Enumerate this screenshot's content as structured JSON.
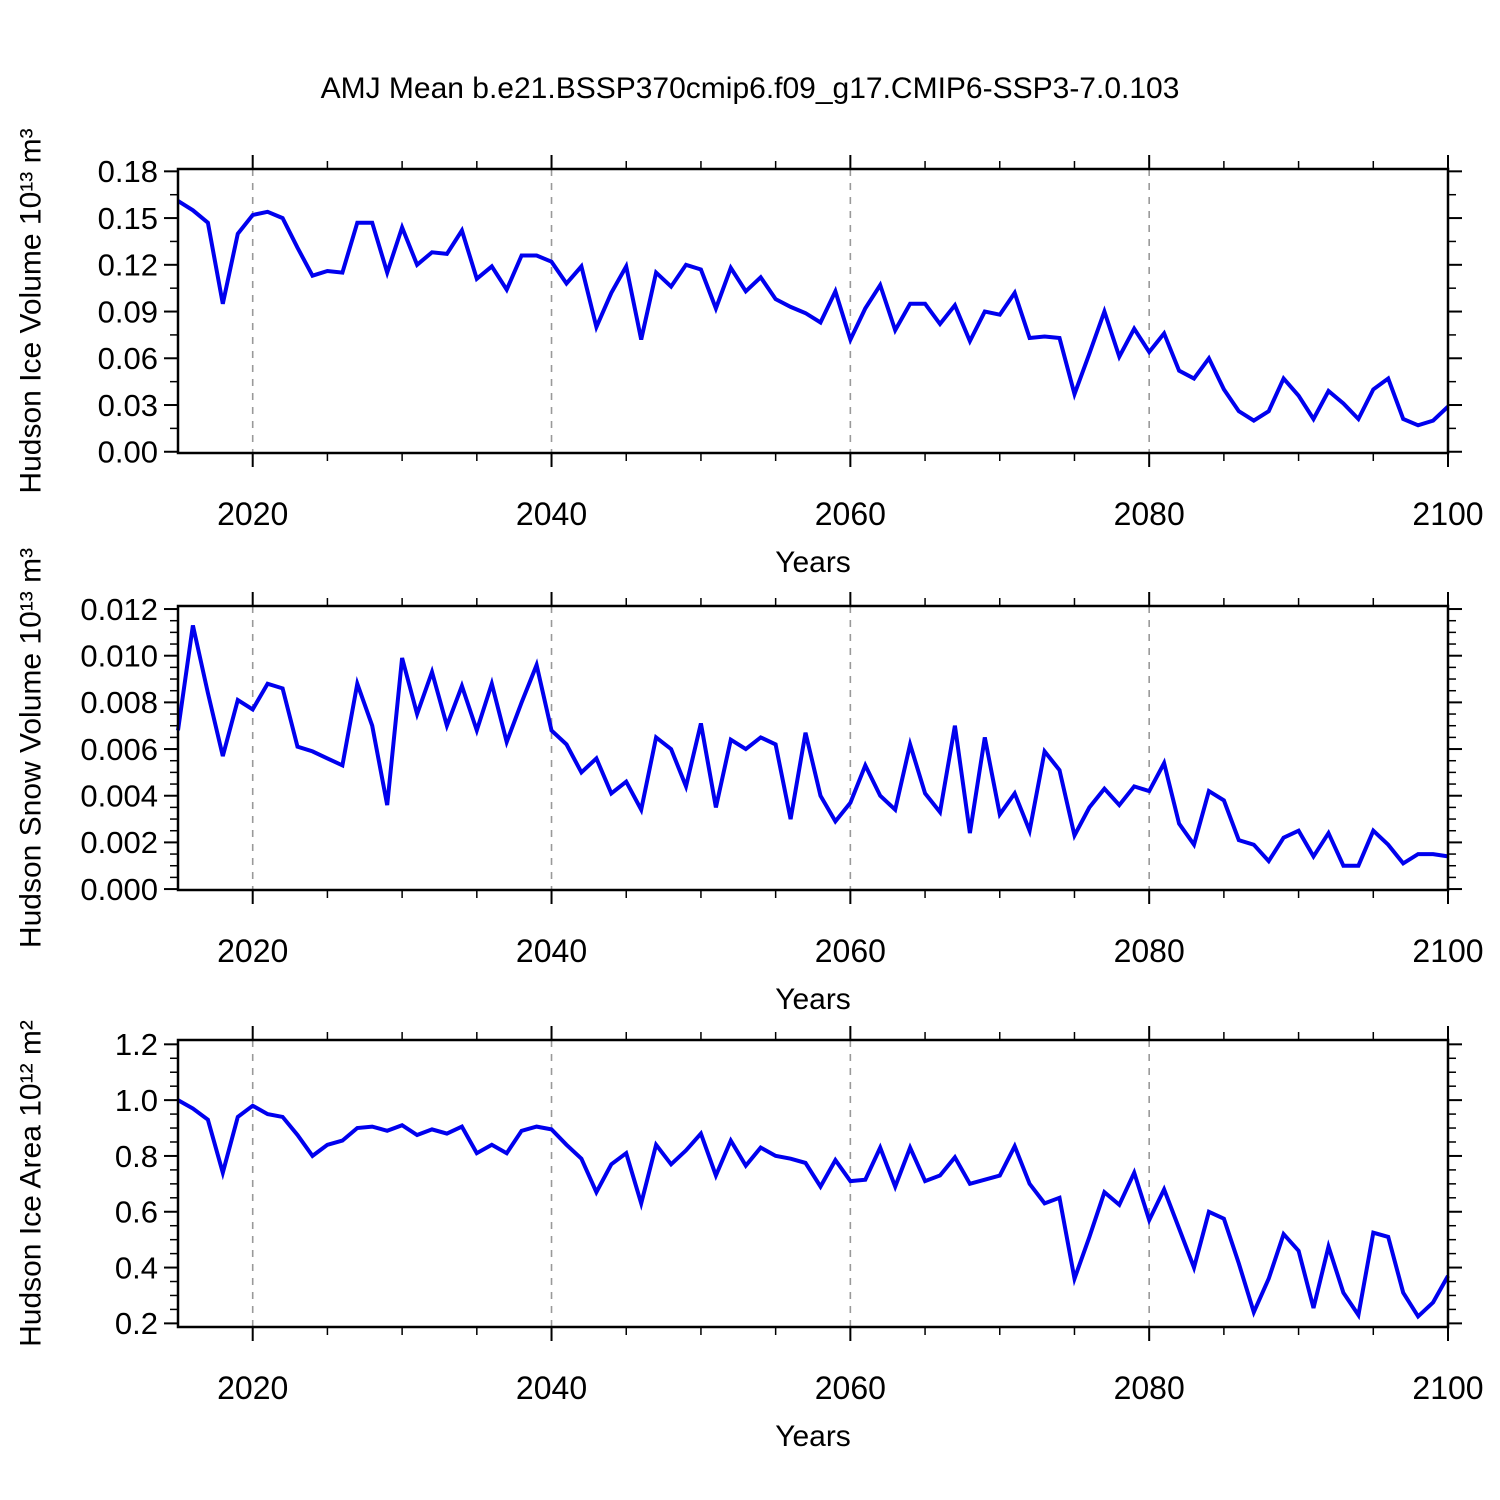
{
  "title": "AMJ Mean b.e21.BSSP370cmip6.f09_g17.CMIP6-SSP3-7.0.103",
  "figure": {
    "background": "#ffffff",
    "series_color": "#0000ee",
    "grid_color": "#999999",
    "frame_color": "#000000"
  },
  "chart_data": [
    {
      "type": "line",
      "name": "hudson-ice-volume",
      "ylabel": "Hudson Ice Volume 10¹³ m³",
      "xlabel": "Years",
      "x_range": {
        "start": 2015,
        "end": 2100,
        "step": 1
      },
      "xlim": [
        2015,
        2100
      ],
      "ylim": [
        -0.0008,
        0.1815
      ],
      "xticks": [
        2020,
        2040,
        2060,
        2080,
        2100
      ],
      "xtick_labels": [
        "2020",
        "2040",
        "2060",
        "2080",
        "2100"
      ],
      "x_minor_step": 5,
      "yticks": [
        0.0,
        0.03,
        0.06,
        0.09,
        0.12,
        0.15,
        0.18
      ],
      "ytick_labels": [
        "0.00",
        "0.03",
        "0.06",
        "0.09",
        "0.12",
        "0.15",
        "0.18"
      ],
      "y_minor_step": 0.015,
      "grid_x": [
        2020,
        2040,
        2060,
        2080
      ],
      "grid_on": true,
      "legend": "none",
      "values": [
        0.161,
        0.155,
        0.147,
        0.095,
        0.14,
        0.152,
        0.154,
        0.15,
        0.131,
        0.113,
        0.116,
        0.115,
        0.147,
        0.147,
        0.115,
        0.144,
        0.12,
        0.128,
        0.127,
        0.142,
        0.111,
        0.119,
        0.104,
        0.126,
        0.126,
        0.122,
        0.108,
        0.119,
        0.08,
        0.102,
        0.119,
        0.072,
        0.115,
        0.106,
        0.12,
        0.117,
        0.092,
        0.118,
        0.103,
        0.112,
        0.098,
        0.093,
        0.089,
        0.083,
        0.103,
        0.072,
        0.092,
        0.107,
        0.078,
        0.095,
        0.095,
        0.082,
        0.094,
        0.071,
        0.09,
        0.088,
        0.102,
        0.073,
        0.074,
        0.073,
        0.037,
        0.063,
        0.09,
        0.061,
        0.079,
        0.064,
        0.076,
        0.052,
        0.047,
        0.06,
        0.04,
        0.026,
        0.02,
        0.026,
        0.047,
        0.036,
        0.021,
        0.039,
        0.031,
        0.021,
        0.04,
        0.047,
        0.021,
        0.017,
        0.02,
        0.029
      ]
    },
    {
      "type": "line",
      "name": "hudson-snow-volume",
      "ylabel": "Hudson Snow Volume 10¹³ m³",
      "xlabel": "Years",
      "x_range": {
        "start": 2015,
        "end": 2100,
        "step": 1
      },
      "xlim": [
        2015,
        2100
      ],
      "ylim": [
        -4e-05,
        0.01213
      ],
      "xticks": [
        2020,
        2040,
        2060,
        2080,
        2100
      ],
      "xtick_labels": [
        "2020",
        "2040",
        "2060",
        "2080",
        "2100"
      ],
      "x_minor_step": 5,
      "yticks": [
        0.0,
        0.002,
        0.004,
        0.006,
        0.008,
        0.01,
        0.012
      ],
      "ytick_labels": [
        "0.000",
        "0.002",
        "0.004",
        "0.006",
        "0.008",
        "0.010",
        "0.012"
      ],
      "y_minor_step": 0.0005,
      "grid_x": [
        2020,
        2040,
        2060,
        2080
      ],
      "grid_on": true,
      "legend": "none",
      "values": [
        0.0068,
        0.0113,
        0.0084,
        0.0057,
        0.0081,
        0.0077,
        0.0088,
        0.0086,
        0.0061,
        0.0059,
        0.0056,
        0.0053,
        0.0088,
        0.007,
        0.0036,
        0.0099,
        0.0075,
        0.0093,
        0.007,
        0.0087,
        0.0068,
        0.0088,
        0.0063,
        0.008,
        0.0096,
        0.0068,
        0.0062,
        0.005,
        0.0056,
        0.0041,
        0.0046,
        0.0034,
        0.0065,
        0.006,
        0.0044,
        0.0071,
        0.0035,
        0.0064,
        0.006,
        0.0065,
        0.0062,
        0.003,
        0.0067,
        0.004,
        0.0029,
        0.0037,
        0.0053,
        0.004,
        0.0034,
        0.0062,
        0.0041,
        0.0033,
        0.007,
        0.0024,
        0.0065,
        0.0032,
        0.0041,
        0.0025,
        0.0059,
        0.0051,
        0.0023,
        0.0035,
        0.0043,
        0.0036,
        0.0044,
        0.0042,
        0.0054,
        0.0028,
        0.0019,
        0.0042,
        0.0038,
        0.0021,
        0.0019,
        0.0012,
        0.0022,
        0.0025,
        0.0014,
        0.0024,
        0.001,
        0.001,
        0.0025,
        0.0019,
        0.0011,
        0.0015,
        0.0015,
        0.0014
      ]
    },
    {
      "type": "line",
      "name": "hudson-ice-area",
      "ylabel": "Hudson Ice Area 10¹² m²",
      "xlabel": "Years",
      "x_range": {
        "start": 2015,
        "end": 2100,
        "step": 1
      },
      "xlim": [
        2015,
        2100
      ],
      "ylim": [
        0.187,
        1.2155
      ],
      "xticks": [
        2020,
        2040,
        2060,
        2080,
        2100
      ],
      "xtick_labels": [
        "2020",
        "2040",
        "2060",
        "2080",
        "2100"
      ],
      "x_minor_step": 5,
      "yticks": [
        0.2,
        0.4,
        0.6,
        0.8,
        1.0,
        1.2
      ],
      "ytick_labels": [
        "0.2",
        "0.4",
        "0.6",
        "0.8",
        "1.0",
        "1.2"
      ],
      "y_minor_step": 0.05,
      "grid_x": [
        2020,
        2040,
        2060,
        2080
      ],
      "grid_on": true,
      "legend": "none",
      "values": [
        1.0,
        0.97,
        0.93,
        0.74,
        0.94,
        0.98,
        0.95,
        0.94,
        0.875,
        0.8,
        0.84,
        0.855,
        0.9,
        0.905,
        0.89,
        0.91,
        0.875,
        0.895,
        0.88,
        0.905,
        0.81,
        0.84,
        0.81,
        0.89,
        0.905,
        0.895,
        0.84,
        0.79,
        0.67,
        0.77,
        0.81,
        0.63,
        0.84,
        0.77,
        0.82,
        0.88,
        0.73,
        0.855,
        0.765,
        0.83,
        0.8,
        0.79,
        0.775,
        0.69,
        0.785,
        0.71,
        0.715,
        0.83,
        0.69,
        0.83,
        0.71,
        0.73,
        0.795,
        0.7,
        0.715,
        0.73,
        0.835,
        0.7,
        0.63,
        0.65,
        0.36,
        0.51,
        0.67,
        0.625,
        0.74,
        0.57,
        0.68,
        0.54,
        0.4,
        0.6,
        0.575,
        0.415,
        0.24,
        0.36,
        0.52,
        0.46,
        0.255,
        0.475,
        0.31,
        0.23,
        0.525,
        0.51,
        0.31,
        0.225,
        0.275,
        0.37
      ]
    }
  ]
}
